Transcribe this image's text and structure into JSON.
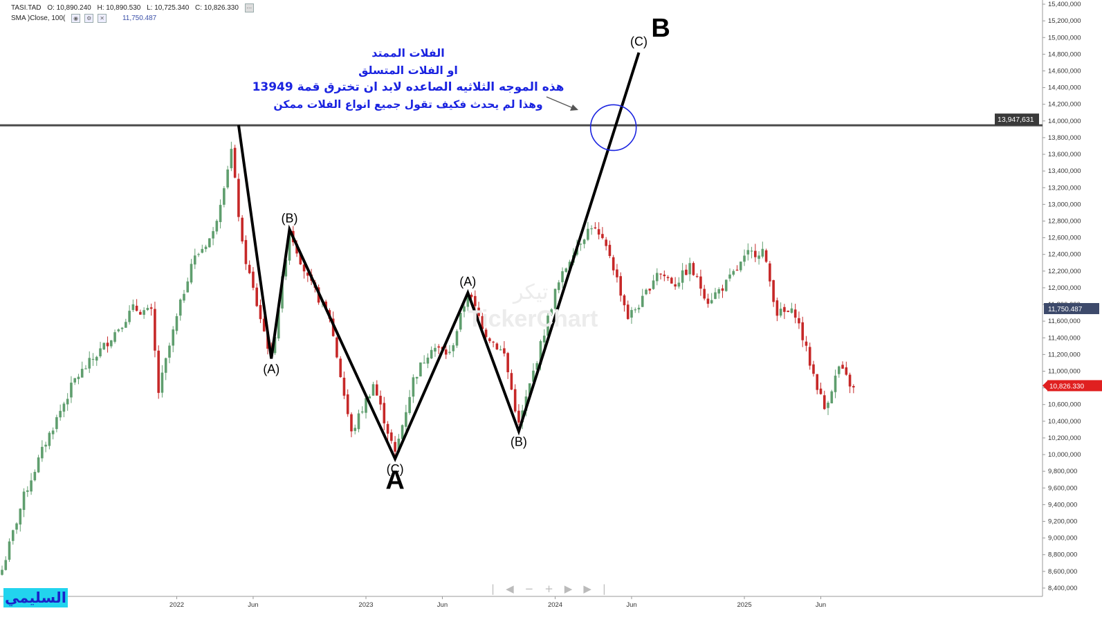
{
  "header": {
    "symbol": "TASI.TAD",
    "open": "O: 10,890.240",
    "high": "H: 10,890.530",
    "low": "L: 10,725.340",
    "close": "C: 10,826.330",
    "sma_label": "SMA )Close, 100(",
    "sma_value": "11,750.487"
  },
  "brand_text": "السليمي",
  "watermark": "TickerChart",
  "watermark_ar": "تيكر",
  "annotation_lines": [
    "الفلات الممتد",
    "او الفلات المتسلق",
    "هذه الموجه الثلاثيه الصاعده لابد ان تخترق قمة 13949",
    "وهذا لم يحدث فكيف تقول جميع انواع الفلات ممكن"
  ],
  "colors": {
    "up": "#5f9e6e",
    "down": "#c62828",
    "wave": "#000000",
    "resistance": "#4a4a4a",
    "circle": "#1a23e0",
    "price_badge": "#e02020",
    "sma_badge": "#3d4a6b",
    "level_badge": "#3a3a3a"
  },
  "chart_data": {
    "type": "candlestick",
    "title": "",
    "ylim": [
      8300000,
      15450000
    ],
    "y_ticks": [
      "8,400,000",
      "8,600,000",
      "8,800,000",
      "9,000,000",
      "9,200,000",
      "9,400,000",
      "9,600,000",
      "9,800,000",
      "10,000,000",
      "10,200,000",
      "10,400,000",
      "10,600,000",
      "10,800,000",
      "11,000,000",
      "11,200,000",
      "11,400,000",
      "11,600,000",
      "11,800,000",
      "12,000,000",
      "12,200,000",
      "12,400,000",
      "12,600,000",
      "12,800,000",
      "13,000,000",
      "13,200,000",
      "13,400,000",
      "13,600,000",
      "13,800,000",
      "14,000,000",
      "14,200,000",
      "14,400,000",
      "14,600,000",
      "14,800,000",
      "15,000,000",
      "15,200,000",
      "15,400,000"
    ],
    "x_ticks": [
      {
        "label": "2022",
        "week": 48
      },
      {
        "label": "Jun",
        "week": 69
      },
      {
        "label": "2023",
        "week": 100
      },
      {
        "label": "Jun",
        "week": 121
      },
      {
        "label": "2024",
        "week": 152
      },
      {
        "label": "Jun",
        "week": 173
      },
      {
        "label": "2025",
        "week": 204
      },
      {
        "label": "Jun",
        "week": 225
      }
    ],
    "resistance": {
      "value": 13947631,
      "label": "13,947,631"
    },
    "current_price": {
      "value": 10826330,
      "label": "10,826.330"
    },
    "sma": {
      "value": 11750487,
      "label": "11,750.487"
    },
    "waves": [
      {
        "week": 65,
        "value": 13950000
      },
      {
        "week": 74,
        "value": 11150000,
        "label": "(A)",
        "label_pos": "below"
      },
      {
        "week": 79,
        "value": 12700000,
        "label": "(B)",
        "label_pos": "above"
      },
      {
        "week": 108,
        "value": 9950000,
        "label": "(C)",
        "label_pos": "below"
      },
      {
        "week": 128,
        "value": 11940000,
        "label": "(A)",
        "label_pos": "above"
      },
      {
        "week": 142,
        "value": 10280000,
        "label": "(B)",
        "label_pos": "below"
      },
      {
        "week": 175,
        "value": 14820000,
        "label": "(C)",
        "label_pos": "above"
      }
    ],
    "big_labels": [
      {
        "text": "A",
        "week": 108,
        "value": 9590000
      },
      {
        "text": "B",
        "week": 181,
        "value": 15010000
      }
    ],
    "circle": {
      "week": 168,
      "value": 13920000
    },
    "anchors": [
      [
        0,
        8620000
      ],
      [
        6,
        9500000
      ],
      [
        12,
        10150000
      ],
      [
        20,
        10900000
      ],
      [
        28,
        11300000
      ],
      [
        36,
        11750000
      ],
      [
        41,
        11700000
      ],
      [
        43,
        10750000
      ],
      [
        46,
        11300000
      ],
      [
        52,
        12300000
      ],
      [
        58,
        12650000
      ],
      [
        63,
        13650000
      ],
      [
        66,
        12500000
      ],
      [
        70,
        11800000
      ],
      [
        74,
        11150000
      ],
      [
        79,
        12700000
      ],
      [
        84,
        12100000
      ],
      [
        90,
        11650000
      ],
      [
        96,
        10250000
      ],
      [
        102,
        10850000
      ],
      [
        108,
        10000000
      ],
      [
        113,
        10900000
      ],
      [
        118,
        11300000
      ],
      [
        123,
        11200000
      ],
      [
        128,
        11950000
      ],
      [
        133,
        11450000
      ],
      [
        138,
        11200000
      ],
      [
        142,
        10350000
      ],
      [
        147,
        11150000
      ],
      [
        152,
        11950000
      ],
      [
        157,
        12450000
      ],
      [
        162,
        12750000
      ],
      [
        167,
        12400000
      ],
      [
        172,
        11650000
      ],
      [
        176,
        11850000
      ],
      [
        180,
        12200000
      ],
      [
        185,
        12050000
      ],
      [
        189,
        12250000
      ],
      [
        194,
        11850000
      ],
      [
        199,
        12050000
      ],
      [
        205,
        12400000
      ],
      [
        209,
        12450000
      ],
      [
        213,
        11700000
      ],
      [
        218,
        11700000
      ],
      [
        222,
        11100000
      ],
      [
        226,
        10550000
      ],
      [
        230,
        11050000
      ],
      [
        234,
        10780000
      ]
    ]
  }
}
